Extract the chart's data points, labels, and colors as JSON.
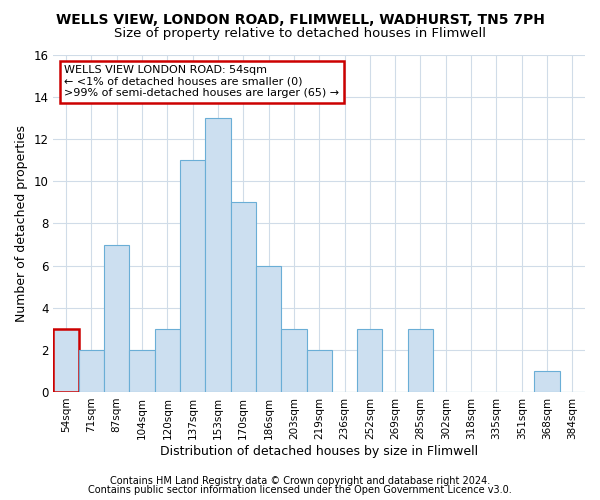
{
  "title": "WELLS VIEW, LONDON ROAD, FLIMWELL, WADHURST, TN5 7PH",
  "subtitle": "Size of property relative to detached houses in Flimwell",
  "xlabel": "Distribution of detached houses by size in Flimwell",
  "ylabel": "Number of detached properties",
  "categories": [
    "54sqm",
    "71sqm",
    "87sqm",
    "104sqm",
    "120sqm",
    "137sqm",
    "153sqm",
    "170sqm",
    "186sqm",
    "203sqm",
    "219sqm",
    "236sqm",
    "252sqm",
    "269sqm",
    "285sqm",
    "302sqm",
    "318sqm",
    "335sqm",
    "351sqm",
    "368sqm",
    "384sqm"
  ],
  "values": [
    3,
    2,
    7,
    2,
    3,
    11,
    13,
    9,
    6,
    3,
    2,
    0,
    3,
    0,
    3,
    0,
    0,
    0,
    0,
    1,
    0
  ],
  "bar_color": "#ccdff0",
  "bar_edge_color": "#6aaed6",
  "highlight_bar_index": 0,
  "highlight_edge_color": "#cc0000",
  "annotation_line1": "WELLS VIEW LONDON ROAD: 54sqm",
  "annotation_line2": "← <1% of detached houses are smaller (0)",
  "annotation_line3": ">99% of semi-detached houses are larger (65) →",
  "annotation_box_edge_color": "#cc0000",
  "ylim": [
    0,
    16
  ],
  "yticks": [
    0,
    2,
    4,
    6,
    8,
    10,
    12,
    14,
    16
  ],
  "footer_line1": "Contains HM Land Registry data © Crown copyright and database right 2024.",
  "footer_line2": "Contains public sector information licensed under the Open Government Licence v3.0.",
  "background_color": "#ffffff",
  "plot_bg_color": "#ffffff",
  "grid_color": "#d0dce8",
  "title_fontsize": 10,
  "subtitle_fontsize": 9.5,
  "xlabel_fontsize": 9,
  "ylabel_fontsize": 9,
  "footer_fontsize": 7
}
